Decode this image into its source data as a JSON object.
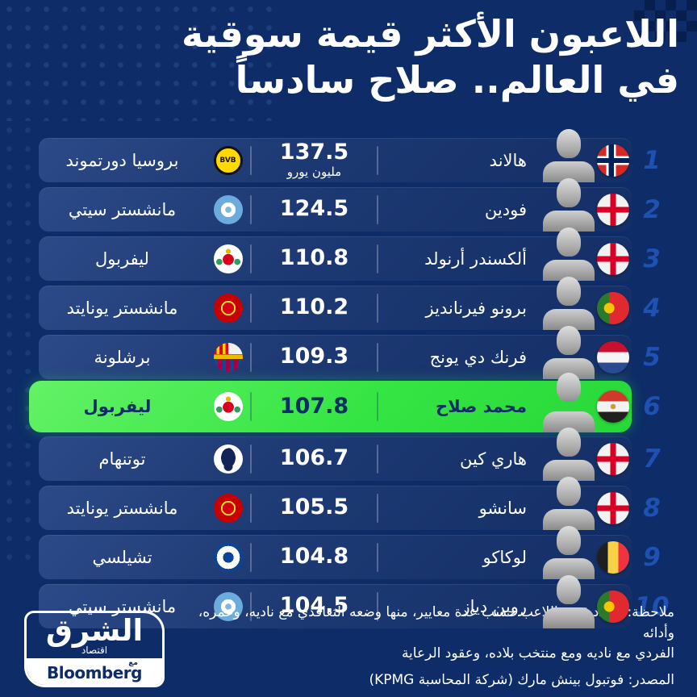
{
  "title": {
    "line1": "اللاعبون الأكثر قيمة سوقية",
    "line2": "في العالم.. صلاح سادساً"
  },
  "rows": [
    {
      "rank": "1",
      "player": "هالاند",
      "value": "137.5",
      "unit": "مليون يورو",
      "club": "بروسيا دورتموند",
      "flag": "flag-norway",
      "logo": "logo-dortmund"
    },
    {
      "rank": "2",
      "player": "فودين",
      "value": "124.5",
      "unit": "",
      "club": "مانشستر سيتي",
      "flag": "flag-england",
      "logo": "logo-mancity"
    },
    {
      "rank": "3",
      "player": "ألكسندر أرنولد",
      "value": "110.8",
      "unit": "",
      "club": "ليفربول",
      "flag": "flag-england",
      "logo": "logo-liverpool"
    },
    {
      "rank": "4",
      "player": "برونو فيرنانديز",
      "value": "110.2",
      "unit": "",
      "club": "مانشستر يونايتد",
      "flag": "flag-portugal",
      "logo": "logo-manutd"
    },
    {
      "rank": "5",
      "player": "فرنك دي يونج",
      "value": "109.3",
      "unit": "",
      "club": "برشلونة",
      "flag": "flag-netherlands",
      "logo": "logo-barcelona"
    },
    {
      "rank": "6",
      "player": "محمد صلاح",
      "value": "107.8",
      "unit": "",
      "club": "ليفربول",
      "flag": "flag-egypt",
      "logo": "logo-liverpool",
      "row_class": "highlight"
    },
    {
      "rank": "7",
      "player": "هاري كين",
      "value": "106.7",
      "unit": "",
      "club": "توتنهام",
      "flag": "flag-england",
      "logo": "logo-tottenham"
    },
    {
      "rank": "8",
      "player": "سانشو",
      "value": "105.5",
      "unit": "",
      "club": "مانشستر يونايتد",
      "flag": "flag-england",
      "logo": "logo-manutd"
    },
    {
      "rank": "9",
      "player": "لوكاكو",
      "value": "104.8",
      "unit": "",
      "club": "تشيلسي",
      "flag": "flag-belgium",
      "logo": "logo-chelsea"
    },
    {
      "rank": "10",
      "player": "روبن دياز",
      "value": "104.5",
      "unit": "",
      "club": "مانشستر سيتي",
      "flag": "flag-portugal",
      "logo": "logo-mancity"
    }
  ],
  "footer": {
    "note_line1": "ملاحظة: تتحدد قيمة اللاعب حسب عدة معايير، منها وضعه التعاقدي مع ناديه، وعمره، وأدائه",
    "note_line2": "الفردي مع ناديه ومع منتخب بلاده، وعقود الرعاية",
    "source": "المصدر: فوتبول بينش مارك (شركة المحاسبة KPMG)"
  },
  "brand": {
    "name": "الشرق",
    "sub": "اقتصاد",
    "with_label": "مع",
    "partner": "Bloomberg"
  },
  "colors": {
    "background": "#0d2c68",
    "row_blue": "#1d3973",
    "highlight_green": "#35e544",
    "rank_blue": "#1d52b2",
    "text_dark": "#0e2d66"
  }
}
